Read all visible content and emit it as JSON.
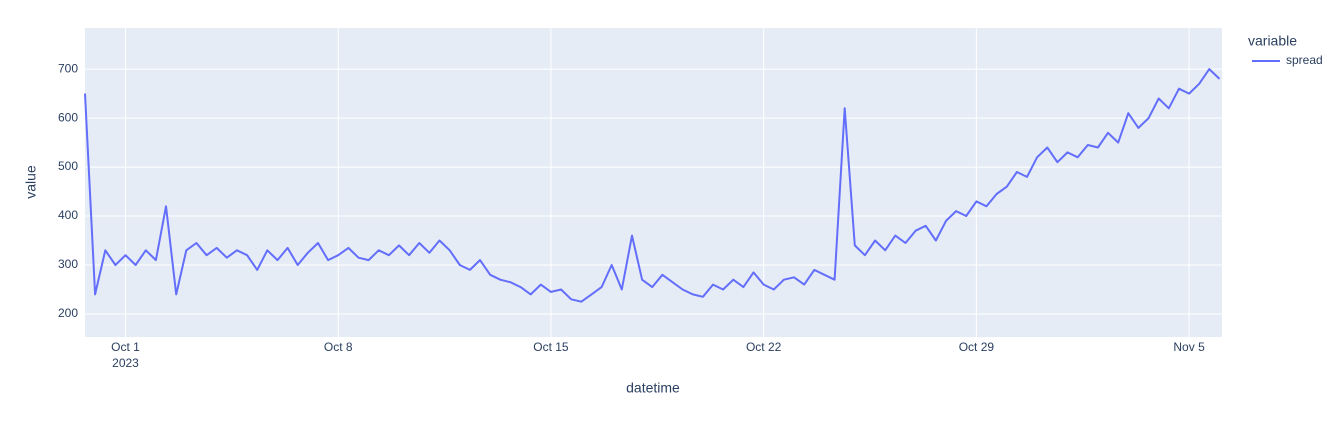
{
  "chart_data": {
    "type": "line",
    "x_label": "datetime",
    "y_label": "value",
    "legend_title": "variable",
    "legend_position": "right",
    "xtick_year": "2023",
    "xlim": [
      "2023-09-29 16:00",
      "2023-11-06 02:00"
    ],
    "xticks": [
      {
        "value": "2023-10-01",
        "label": "Oct 1"
      },
      {
        "value": "2023-10-08",
        "label": "Oct 8"
      },
      {
        "value": "2023-10-15",
        "label": "Oct 15"
      },
      {
        "value": "2023-10-22",
        "label": "Oct 22"
      },
      {
        "value": "2023-10-29",
        "label": "Oct 29"
      },
      {
        "value": "2023-11-05",
        "label": "Nov 5"
      }
    ],
    "ylim": [
      153,
      784
    ],
    "yticks": [
      200,
      300,
      400,
      500,
      600,
      700
    ],
    "grid": true,
    "x": [
      "2023-09-29 16:00",
      "2023-09-30 00:00",
      "2023-09-30 08:00",
      "2023-09-30 16:00",
      "2023-10-01 00:00",
      "2023-10-01 08:00",
      "2023-10-01 16:00",
      "2023-10-02 00:00",
      "2023-10-02 08:00",
      "2023-10-02 16:00",
      "2023-10-03 00:00",
      "2023-10-03 08:00",
      "2023-10-03 16:00",
      "2023-10-04 00:00",
      "2023-10-04 08:00",
      "2023-10-04 16:00",
      "2023-10-05 00:00",
      "2023-10-05 08:00",
      "2023-10-05 16:00",
      "2023-10-06 00:00",
      "2023-10-06 08:00",
      "2023-10-06 16:00",
      "2023-10-07 00:00",
      "2023-10-07 08:00",
      "2023-10-07 16:00",
      "2023-10-08 00:00",
      "2023-10-08 08:00",
      "2023-10-08 16:00",
      "2023-10-09 00:00",
      "2023-10-09 08:00",
      "2023-10-09 16:00",
      "2023-10-10 00:00",
      "2023-10-10 08:00",
      "2023-10-10 16:00",
      "2023-10-11 00:00",
      "2023-10-11 08:00",
      "2023-10-11 16:00",
      "2023-10-12 00:00",
      "2023-10-12 08:00",
      "2023-10-12 16:00",
      "2023-10-13 00:00",
      "2023-10-13 08:00",
      "2023-10-13 16:00",
      "2023-10-14 00:00",
      "2023-10-14 08:00",
      "2023-10-14 16:00",
      "2023-10-15 00:00",
      "2023-10-15 08:00",
      "2023-10-15 16:00",
      "2023-10-16 00:00",
      "2023-10-16 08:00",
      "2023-10-16 16:00",
      "2023-10-17 00:00",
      "2023-10-17 08:00",
      "2023-10-17 16:00",
      "2023-10-18 00:00",
      "2023-10-18 08:00",
      "2023-10-18 16:00",
      "2023-10-19 00:00",
      "2023-10-19 08:00",
      "2023-10-19 16:00",
      "2023-10-20 00:00",
      "2023-10-20 08:00",
      "2023-10-20 16:00",
      "2023-10-21 00:00",
      "2023-10-21 08:00",
      "2023-10-21 16:00",
      "2023-10-22 00:00",
      "2023-10-22 08:00",
      "2023-10-22 16:00",
      "2023-10-23 00:00",
      "2023-10-23 08:00",
      "2023-10-23 16:00",
      "2023-10-24 00:00",
      "2023-10-24 08:00",
      "2023-10-24 16:00",
      "2023-10-25 00:00",
      "2023-10-25 08:00",
      "2023-10-25 16:00",
      "2023-10-26 00:00",
      "2023-10-26 08:00",
      "2023-10-26 16:00",
      "2023-10-27 00:00",
      "2023-10-27 08:00",
      "2023-10-27 16:00",
      "2023-10-28 00:00",
      "2023-10-28 08:00",
      "2023-10-28 16:00",
      "2023-10-29 00:00",
      "2023-10-29 08:00",
      "2023-10-29 16:00",
      "2023-10-30 00:00",
      "2023-10-30 08:00",
      "2023-10-30 16:00",
      "2023-10-31 00:00",
      "2023-10-31 08:00",
      "2023-10-31 16:00",
      "2023-11-01 00:00",
      "2023-11-01 08:00",
      "2023-11-01 16:00",
      "2023-11-02 00:00",
      "2023-11-02 08:00",
      "2023-11-02 16:00",
      "2023-11-03 00:00",
      "2023-11-03 08:00",
      "2023-11-03 16:00",
      "2023-11-04 00:00",
      "2023-11-04 08:00",
      "2023-11-04 16:00",
      "2023-11-05 00:00",
      "2023-11-05 08:00",
      "2023-11-05 16:00",
      "2023-11-06 00:00"
    ],
    "series": [
      {
        "name": "spread",
        "color": "#636efa",
        "values": [
          650,
          240,
          330,
          300,
          320,
          300,
          330,
          310,
          420,
          240,
          330,
          345,
          320,
          335,
          315,
          330,
          320,
          290,
          330,
          310,
          335,
          300,
          325,
          345,
          310,
          320,
          335,
          315,
          310,
          330,
          320,
          340,
          320,
          345,
          325,
          350,
          330,
          300,
          290,
          310,
          280,
          270,
          265,
          255,
          240,
          260,
          245,
          250,
          230,
          225,
          240,
          255,
          300,
          250,
          360,
          270,
          255,
          280,
          265,
          250,
          240,
          235,
          260,
          250,
          270,
          255,
          285,
          260,
          250,
          270,
          275,
          260,
          290,
          280,
          270,
          620,
          340,
          320,
          350,
          330,
          360,
          345,
          370,
          380,
          350,
          390,
          410,
          400,
          430,
          420,
          445,
          460,
          490,
          480,
          520,
          540,
          510,
          530,
          520,
          545,
          540,
          570,
          550,
          610,
          580,
          600,
          640,
          620,
          660,
          650,
          670,
          700,
          680
        ]
      }
    ]
  }
}
